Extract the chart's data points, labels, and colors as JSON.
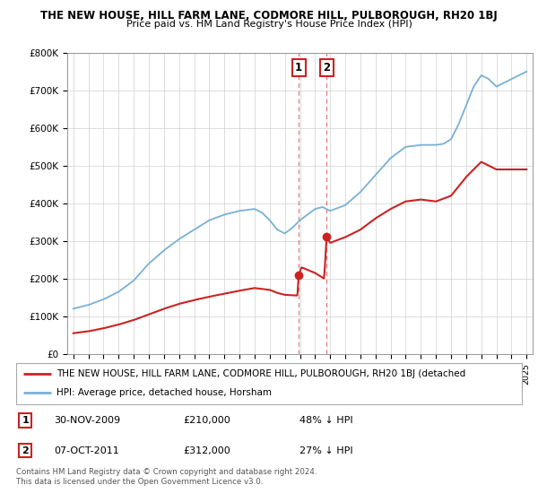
{
  "title": "THE NEW HOUSE, HILL FARM LANE, CODMORE HILL, PULBOROUGH, RH20 1BJ",
  "subtitle": "Price paid vs. HM Land Registry's House Price Index (HPI)",
  "ylim": [
    0,
    800000
  ],
  "yticks": [
    0,
    100000,
    200000,
    300000,
    400000,
    500000,
    600000,
    700000,
    800000
  ],
  "ytick_labels": [
    "£0",
    "£100K",
    "£200K",
    "£300K",
    "£400K",
    "£500K",
    "£600K",
    "£700K",
    "£800K"
  ],
  "hpi_color": "#7ab0d4",
  "price_color": "#cc2222",
  "t1_year": 2009.92,
  "t1_price": 210000,
  "t2_year": 2011.77,
  "t2_price": 312000,
  "legend_line1": "THE NEW HOUSE, HILL FARM LANE, CODMORE HILL, PULBOROUGH, RH20 1BJ (detached",
  "legend_line2": "HPI: Average price, detached house, Horsham",
  "footer1": "Contains HM Land Registry data © Crown copyright and database right 2024.",
  "footer2": "This data is licensed under the Open Government Licence v3.0.",
  "table_row1": [
    "1",
    "30-NOV-2009",
    "£210,000",
    "48% ↓ HPI"
  ],
  "table_row2": [
    "2",
    "07-OCT-2011",
    "£312,000",
    "27% ↓ HPI"
  ],
  "hpi_keypoints_x": [
    1995,
    1996,
    1997,
    1998,
    1999,
    2000,
    2001,
    2002,
    2003,
    2004,
    2005,
    2006,
    2007,
    2007.5,
    2008,
    2008.5,
    2009,
    2009.5,
    2010,
    2010.5,
    2011,
    2011.5,
    2012,
    2013,
    2014,
    2015,
    2016,
    2017,
    2018,
    2019,
    2019.5,
    2020,
    2020.5,
    2021,
    2021.5,
    2022,
    2022.5,
    2023,
    2023.5,
    2024,
    2024.5,
    2025
  ],
  "hpi_keypoints_y": [
    120000,
    130000,
    145000,
    165000,
    195000,
    240000,
    275000,
    305000,
    330000,
    355000,
    370000,
    380000,
    385000,
    375000,
    355000,
    330000,
    320000,
    335000,
    355000,
    370000,
    385000,
    390000,
    380000,
    395000,
    430000,
    475000,
    520000,
    550000,
    555000,
    555000,
    558000,
    570000,
    610000,
    660000,
    710000,
    740000,
    730000,
    710000,
    720000,
    730000,
    740000,
    750000
  ],
  "price_keypoints_x": [
    1995,
    1996,
    1997,
    1998,
    1999,
    2000,
    2001,
    2002,
    2003,
    2004,
    2005,
    2006,
    2007,
    2008,
    2008.5,
    2009,
    2009.83,
    2009.92,
    2010.1,
    2011,
    2011.6,
    2011.77,
    2012,
    2013,
    2014,
    2015,
    2016,
    2017,
    2018,
    2019,
    2020,
    2021,
    2022,
    2023,
    2024,
    2025
  ],
  "price_keypoints_y": [
    55000,
    60000,
    68000,
    78000,
    90000,
    105000,
    120000,
    133000,
    143000,
    152000,
    160000,
    168000,
    175000,
    170000,
    162000,
    157000,
    155000,
    210000,
    230000,
    215000,
    200000,
    312000,
    295000,
    310000,
    330000,
    360000,
    385000,
    405000,
    410000,
    405000,
    420000,
    470000,
    510000,
    490000,
    490000,
    490000
  ]
}
